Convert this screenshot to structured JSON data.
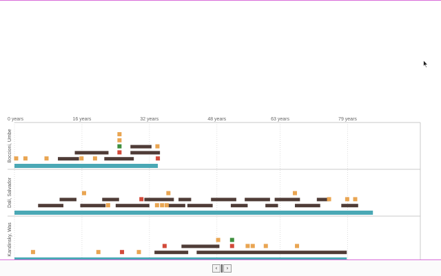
{
  "chart_data": {
    "type": "timeline",
    "x_unit": "years",
    "x_ticks": [
      {
        "value": 0,
        "label": "0 years"
      },
      {
        "value": 16,
        "label": "16 years"
      },
      {
        "value": 32,
        "label": "32 years"
      },
      {
        "value": 48,
        "label": "48 years"
      },
      {
        "value": 63,
        "label": "63 years"
      },
      {
        "value": 79,
        "label": "79 years"
      }
    ],
    "x_range": [
      0,
      97
    ],
    "grid": "vertical dotted",
    "colors": {
      "lifespan": "#4aa8b5",
      "period": "#4f3c37",
      "event_orange": "#e9a552",
      "event_red": "#d24a3a",
      "event_green": "#3f8f3f"
    },
    "artists": [
      {
        "name": "Boccioni, Umbe",
        "lifespan": [
          0,
          34
        ],
        "periods": [
          {
            "start": 10.3,
            "end": 15.3,
            "row": 1
          },
          {
            "start": 21.3,
            "end": 28.3,
            "row": 1
          },
          {
            "start": 14.3,
            "end": 22.3,
            "row": 2
          },
          {
            "start": 27.5,
            "end": 34.5,
            "row": 2
          },
          {
            "start": 27.5,
            "end": 32.5,
            "row": 3
          }
        ],
        "events": [
          {
            "year": 0.4,
            "row": 1,
            "color": "orange"
          },
          {
            "year": 2.6,
            "row": 1,
            "color": "orange"
          },
          {
            "year": 7.6,
            "row": 1,
            "color": "orange"
          },
          {
            "year": 15.9,
            "row": 1,
            "color": "orange"
          },
          {
            "year": 19.1,
            "row": 1,
            "color": "orange"
          },
          {
            "year": 34.0,
            "row": 1,
            "color": "red"
          },
          {
            "year": 24.9,
            "row": 2,
            "color": "red"
          },
          {
            "year": 24.9,
            "row": 3,
            "color": "green"
          },
          {
            "year": 33.9,
            "row": 3,
            "color": "orange"
          },
          {
            "year": 24.9,
            "row": 4,
            "color": "orange"
          },
          {
            "year": 24.9,
            "row": 5,
            "color": "orange"
          }
        ]
      },
      {
        "name": "Dalí, Salvador",
        "lifespan": [
          0,
          85
        ],
        "periods": [
          {
            "start": 5.6,
            "end": 11.6,
            "row": 1
          },
          {
            "start": 15.6,
            "end": 21.6,
            "row": 1
          },
          {
            "start": 24.0,
            "end": 32.0,
            "row": 1
          },
          {
            "start": 36.5,
            "end": 40.5,
            "row": 1
          },
          {
            "start": 41.0,
            "end": 47.0,
            "row": 1
          },
          {
            "start": 51.3,
            "end": 55.3,
            "row": 1
          },
          {
            "start": 59.5,
            "end": 62.5,
            "row": 1
          },
          {
            "start": 66.5,
            "end": 72.5,
            "row": 1
          },
          {
            "start": 77.5,
            "end": 81.5,
            "row": 1
          },
          {
            "start": 10.7,
            "end": 14.7,
            "row": 2
          },
          {
            "start": 20.8,
            "end": 24.8,
            "row": 2
          },
          {
            "start": 30.8,
            "end": 37.8,
            "row": 2
          },
          {
            "start": 38.9,
            "end": 41.9,
            "row": 2
          },
          {
            "start": 46.6,
            "end": 52.6,
            "row": 2
          },
          {
            "start": 54.6,
            "end": 60.6,
            "row": 2
          },
          {
            "start": 61.7,
            "end": 67.7,
            "row": 2
          },
          {
            "start": 71.7,
            "end": 74.7,
            "row": 2
          }
        ],
        "events": [
          {
            "year": 22.2,
            "row": 1,
            "color": "orange"
          },
          {
            "year": 33.8,
            "row": 1,
            "color": "orange"
          },
          {
            "year": 35.0,
            "row": 1,
            "color": "orange"
          },
          {
            "year": 36.1,
            "row": 1,
            "color": "orange"
          },
          {
            "year": 30.1,
            "row": 2,
            "color": "red"
          },
          {
            "year": 74.6,
            "row": 2,
            "color": "orange"
          },
          {
            "year": 78.9,
            "row": 2,
            "color": "orange"
          },
          {
            "year": 80.8,
            "row": 2,
            "color": "orange"
          },
          {
            "year": 16.5,
            "row": 3,
            "color": "orange"
          },
          {
            "year": 36.5,
            "row": 3,
            "color": "orange"
          },
          {
            "year": 66.5,
            "row": 3,
            "color": "orange"
          }
        ]
      },
      {
        "name": "Kandinsky, Was",
        "lifespan": [
          0,
          78.8
        ],
        "periods": [
          {
            "start": 33.2,
            "end": 41.2,
            "row": 1
          },
          {
            "start": 43.2,
            "end": 78.8,
            "row": 1
          },
          {
            "start": 39.6,
            "end": 48.6,
            "row": 2
          }
        ],
        "events": [
          {
            "year": 4.4,
            "row": 1,
            "color": "orange"
          },
          {
            "year": 19.9,
            "row": 1,
            "color": "orange"
          },
          {
            "year": 25.5,
            "row": 1,
            "color": "red"
          },
          {
            "year": 29.5,
            "row": 1,
            "color": "orange"
          },
          {
            "year": 35.6,
            "row": 2,
            "color": "red"
          },
          {
            "year": 51.6,
            "row": 2,
            "color": "red"
          },
          {
            "year": 55.3,
            "row": 2,
            "color": "orange"
          },
          {
            "year": 56.5,
            "row": 2,
            "color": "orange"
          },
          {
            "year": 59.6,
            "row": 2,
            "color": "orange"
          },
          {
            "year": 67.0,
            "row": 2,
            "color": "orange"
          },
          {
            "year": 48.3,
            "row": 3,
            "color": "orange"
          },
          {
            "year": 51.6,
            "row": 3,
            "color": "green"
          }
        ]
      }
    ]
  },
  "pager": {
    "prev_label": "‹",
    "next_label": "›"
  },
  "cursor_icon": "mouse-pointer-icon"
}
